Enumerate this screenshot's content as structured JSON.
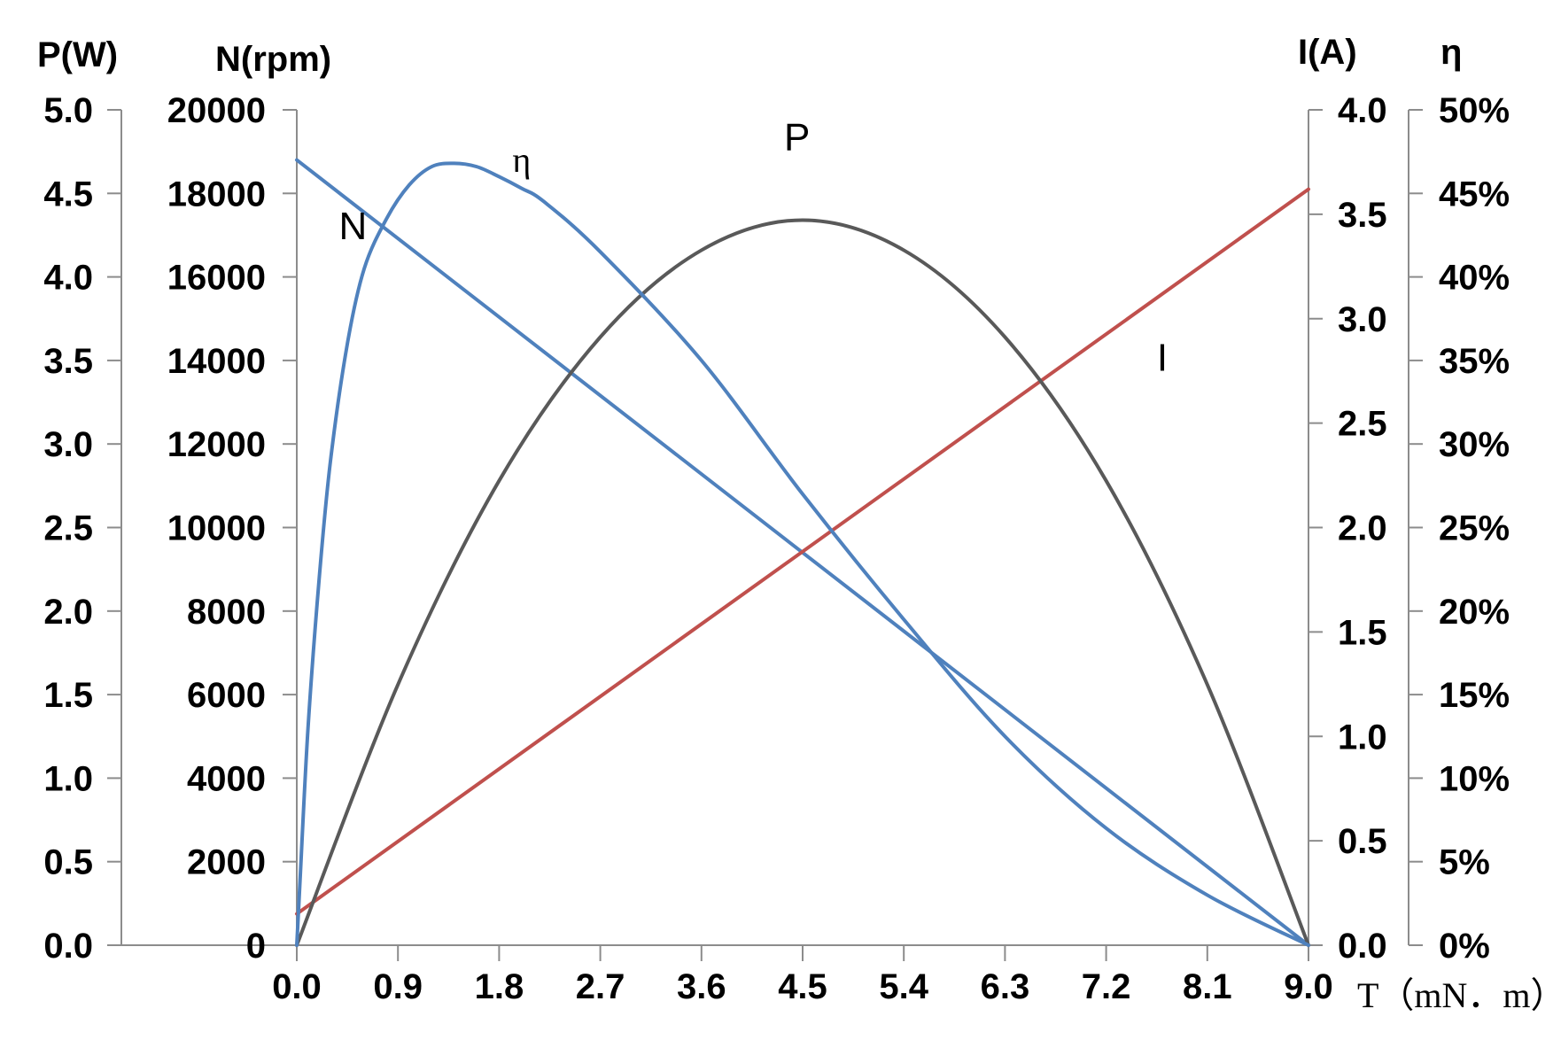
{
  "chart_data": {
    "type": "line",
    "x": [
      0.0,
      0.9,
      1.8,
      2.7,
      3.6,
      4.5,
      5.4,
      6.3,
      7.2,
      8.1,
      9.0
    ],
    "x_axis": {
      "ticks": [
        "0.0",
        "0.9",
        "1.8",
        "2.7",
        "3.6",
        "4.5",
        "5.4",
        "6.3",
        "7.2",
        "8.1",
        "9.0"
      ],
      "label": "T（mN．m）",
      "range": [
        0,
        9
      ]
    },
    "y_axes": [
      {
        "id": "P",
        "title": "P(W)",
        "side": "left-outer",
        "range": [
          0,
          5
        ],
        "ticks": [
          "0.0",
          "0.5",
          "1.0",
          "1.5",
          "2.0",
          "2.5",
          "3.0",
          "3.5",
          "4.0",
          "4.5",
          "5.0"
        ]
      },
      {
        "id": "N",
        "title": "N(rpm)",
        "side": "left-inner",
        "range": [
          0,
          20000
        ],
        "ticks": [
          "0",
          "2000",
          "4000",
          "6000",
          "8000",
          "10000",
          "12000",
          "14000",
          "16000",
          "18000",
          "20000"
        ]
      },
      {
        "id": "I",
        "title": "I(A)",
        "side": "right-inner",
        "range": [
          0,
          4
        ],
        "ticks": [
          "0.0",
          "0.5",
          "1.0",
          "1.5",
          "2.0",
          "2.5",
          "3.0",
          "3.5",
          "4.0"
        ]
      },
      {
        "id": "eta",
        "title": "η",
        "side": "right-outer",
        "range": [
          0,
          50
        ],
        "ticks": [
          "0%",
          "5%",
          "10%",
          "15%",
          "20%",
          "25%",
          "30%",
          "35%",
          "40%",
          "45%",
          "50%"
        ]
      }
    ],
    "series": [
      {
        "name": "N",
        "axis": "N",
        "color": "#4f81bd",
        "points": [
          [
            0,
            18800
          ],
          [
            9,
            0
          ]
        ]
      },
      {
        "name": "I",
        "axis": "I",
        "color": "#c0504d",
        "points": [
          [
            0,
            0.15
          ],
          [
            9,
            3.62
          ]
        ]
      },
      {
        "name": "P",
        "axis": "P",
        "color": "#595959",
        "points": [
          [
            0,
            0
          ],
          [
            0.9,
            1.56
          ],
          [
            1.8,
            2.78
          ],
          [
            2.7,
            3.64
          ],
          [
            3.6,
            4.16
          ],
          [
            4.5,
            4.34
          ],
          [
            5.4,
            4.16
          ],
          [
            6.3,
            3.64
          ],
          [
            7.2,
            2.78
          ],
          [
            8.1,
            1.56
          ],
          [
            9.0,
            0
          ]
        ]
      },
      {
        "name": "η",
        "axis": "eta",
        "color": "#4f81bd",
        "points": [
          [
            0,
            0
          ],
          [
            0.03,
            4
          ],
          [
            0.1,
            13
          ],
          [
            0.2,
            22
          ],
          [
            0.3,
            29
          ],
          [
            0.45,
            36
          ],
          [
            0.6,
            40.5
          ],
          [
            0.8,
            43.5
          ],
          [
            1.0,
            45.5
          ],
          [
            1.2,
            46.6
          ],
          [
            1.4,
            46.8
          ],
          [
            1.6,
            46.6
          ],
          [
            1.8,
            46
          ],
          [
            2.0,
            45.3
          ],
          [
            2.2,
            44.5
          ],
          [
            2.7,
            41.5
          ],
          [
            3.6,
            35
          ],
          [
            4.5,
            27
          ],
          [
            5.4,
            19.5
          ],
          [
            6.3,
            12.5
          ],
          [
            7.2,
            7
          ],
          [
            8.1,
            3
          ],
          [
            9.0,
            0
          ]
        ]
      }
    ],
    "curve_labels": [
      {
        "text": "N",
        "x": 0.5,
        "axis": "N",
        "y": 16900
      },
      {
        "text": "η",
        "x": 2.0,
        "axis": "eta",
        "y": 46.3
      },
      {
        "text": "P",
        "x": 4.45,
        "axis": "P",
        "y": 4.76
      },
      {
        "text": "I",
        "x": 7.7,
        "axis": "I",
        "y": 2.75
      }
    ],
    "grid": false,
    "legend": "none"
  }
}
